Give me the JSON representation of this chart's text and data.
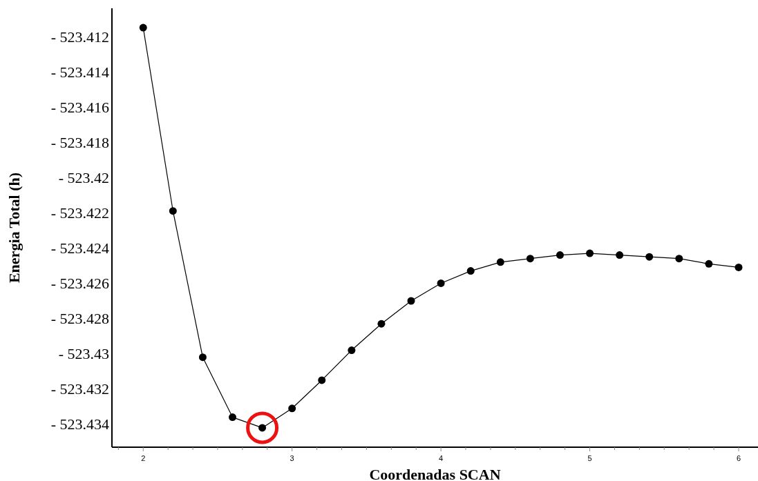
{
  "chart_data": {
    "type": "line",
    "xlabel": "Coordenadas SCAN",
    "ylabel": "Energia Total (h)",
    "x": [
      2,
      2.2,
      2.4,
      2.6,
      2.8,
      3,
      3.2,
      3.4,
      3.6,
      3.8,
      4,
      4.2,
      4.4,
      4.6,
      4.8,
      5,
      5.2,
      5.4,
      5.6,
      5.8,
      6
    ],
    "series": [
      {
        "color": "#000000",
        "values": [
          -523.4115,
          -523.4219,
          -523.4302,
          -523.4336,
          -523.4342,
          -523.4331,
          -523.4315,
          -523.4298,
          -523.4283,
          -523.427,
          -523.426,
          -523.4253,
          -523.4248,
          -523.4246,
          -523.4244,
          -523.4243,
          -523.4244,
          -523.4245,
          -523.4246,
          -523.4249,
          -523.4251
        ]
      }
    ],
    "xlim": [
      1.79,
      6.13
    ],
    "ylim": [
      -523.4353,
      -523.4104
    ],
    "xticks": [
      {
        "value": 1.8333,
        "label": null
      },
      2,
      {
        "value": 2.1667,
        "label": null
      },
      {
        "value": 2.3333,
        "label": null
      },
      {
        "value": 2.5,
        "label": null
      },
      {
        "value": 2.6667,
        "label": null
      },
      {
        "value": 2.8333,
        "label": null
      },
      3,
      {
        "value": 3.1667,
        "label": null
      },
      {
        "value": 3.3333,
        "label": null
      },
      {
        "value": 3.5,
        "label": null
      },
      {
        "value": 3.6667,
        "label": null
      },
      {
        "value": 3.8333,
        "label": null
      },
      4,
      {
        "value": 4.1667,
        "label": null
      },
      {
        "value": 4.3333,
        "label": null
      },
      {
        "value": 4.5,
        "label": null
      },
      {
        "value": 4.6667,
        "label": null
      },
      {
        "value": 4.8333,
        "label": null
      },
      5,
      {
        "value": 5.1667,
        "label": null
      },
      {
        "value": 5.3333,
        "label": null
      },
      {
        "value": 5.5,
        "label": null
      },
      {
        "value": 5.6667,
        "label": null
      },
      {
        "value": 5.8333,
        "label": null
      },
      6
    ],
    "yticks": [
      {
        "value": -523.412,
        "label": "- 523.412"
      },
      {
        "value": -523.414,
        "label": "- 523.414"
      },
      {
        "value": -523.416,
        "label": "- 523.416"
      },
      {
        "value": -523.418,
        "label": "- 523.418"
      },
      {
        "value": -523.42,
        "label": "- 523.42"
      },
      {
        "value": -523.422,
        "label": "- 523.422"
      },
      {
        "value": -523.424,
        "label": "- 523.424"
      },
      {
        "value": -523.426,
        "label": "- 523.426"
      },
      {
        "value": -523.428,
        "label": "- 523.428"
      },
      {
        "value": -523.43,
        "label": "- 523.43"
      },
      {
        "value": -523.432,
        "label": "- 523.432"
      },
      {
        "value": -523.434,
        "label": "- 523.434"
      }
    ],
    "grid": false,
    "marker": "circle",
    "line_style": "solid"
  }
}
